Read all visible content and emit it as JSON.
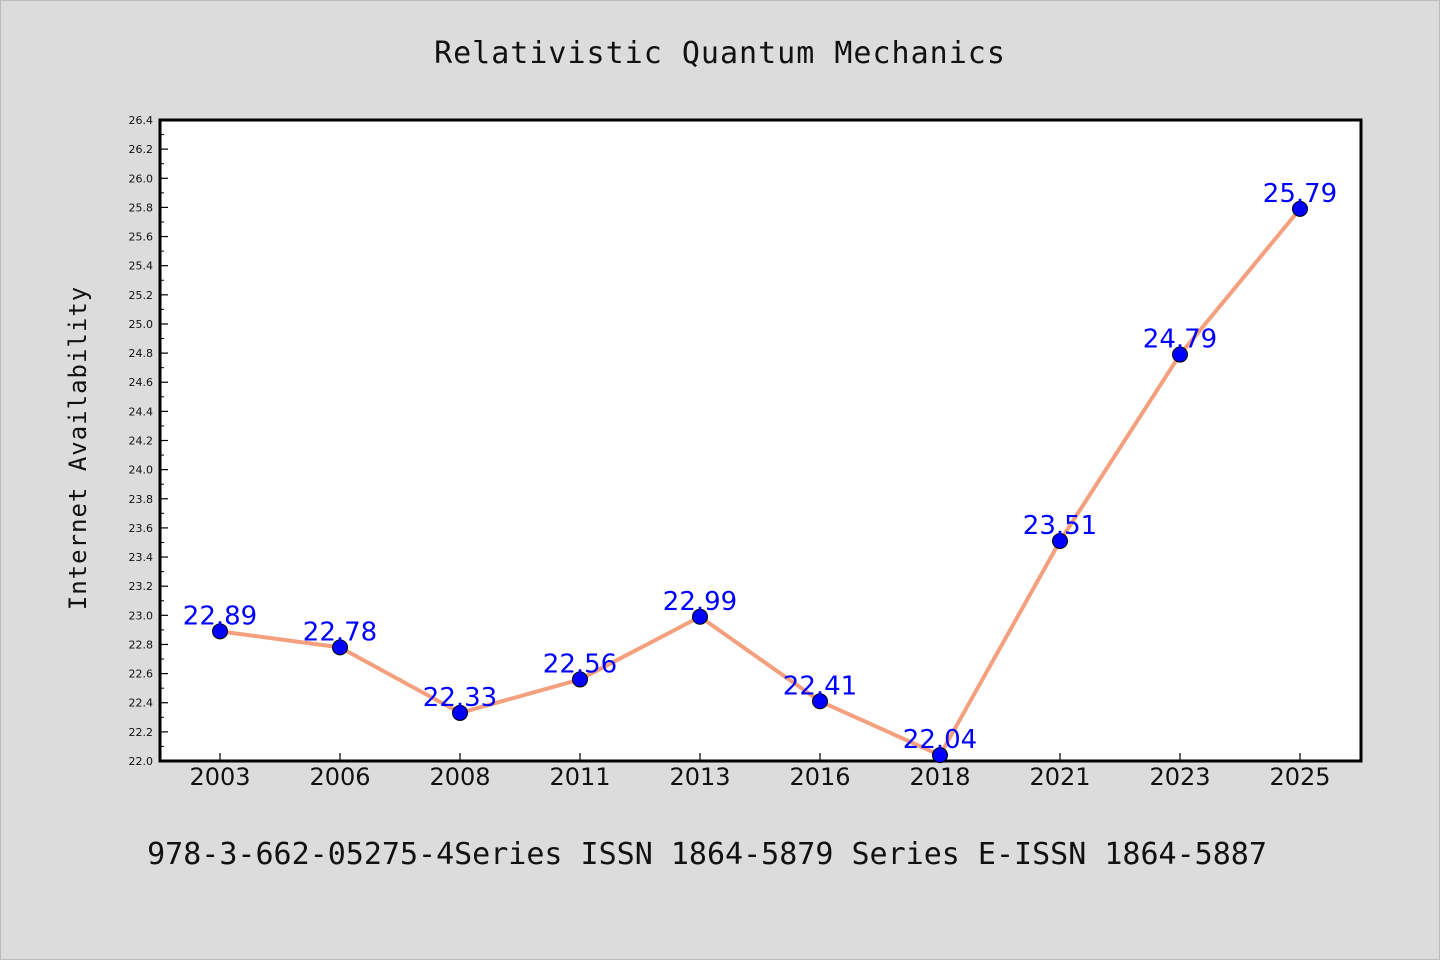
{
  "chart_data": {
    "type": "line",
    "title": "Relativistic Quantum Mechanics",
    "xlabel": "",
    "ylabel": "Internet Availability",
    "categories": [
      "2003",
      "2006",
      "2008",
      "2011",
      "2013",
      "2016",
      "2018",
      "2021",
      "2023",
      "2025"
    ],
    "series": [
      {
        "values": [
          22.89,
          22.78,
          22.33,
          22.56,
          22.99,
          22.41,
          22.04,
          23.51,
          24.79,
          25.79
        ],
        "labels": [
          "22.89",
          "22.78",
          "22.33",
          "22.56",
          "22.99",
          "22.41",
          "22.04",
          "23.51",
          "24.79",
          "25.79"
        ]
      }
    ],
    "ylim": [
      22.0,
      26.4
    ],
    "yticks": [
      "22.0",
      "22.2",
      "22.4",
      "22.6",
      "22.8",
      "23.0",
      "23.2",
      "23.4",
      "23.6",
      "23.8",
      "24.0",
      "24.2",
      "24.4",
      "24.6",
      "24.8",
      "25.0",
      "25.2",
      "25.4",
      "25.6",
      "25.8",
      "26.0",
      "26.2",
      "26.4"
    ],
    "grid": false,
    "colors": {
      "line": "#f4a07e",
      "marker": "#0000ff",
      "label": "#0000ff",
      "background": "#dcdcdc",
      "plot_area": "#ffffff"
    }
  },
  "footer": "978-3-662-05275-4Series ISSN 1864-5879 Series E-ISSN 1864-5887"
}
